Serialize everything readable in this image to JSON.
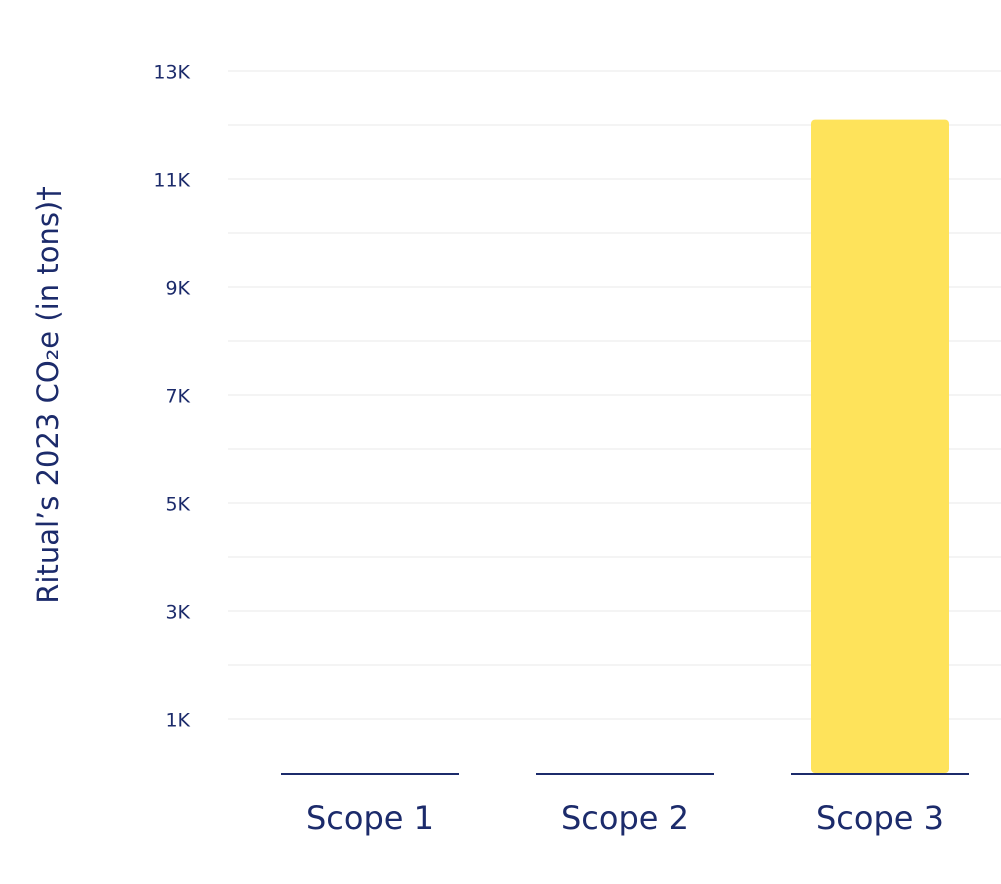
{
  "chart_data": {
    "type": "bar",
    "y_label": "Ritual’s 2023 CO₂e  (in tons)†",
    "categories": [
      "Scope 1",
      "Scope 2",
      "Scope 3"
    ],
    "values": [
      0,
      0,
      12100
    ],
    "color": "#fee35b",
    "baseline_color": "#1c2b6b",
    "ylim": [
      0,
      13000
    ],
    "yticks": [
      {
        "value": 1000,
        "label": "1K"
      },
      {
        "value": 3000,
        "label": "3K"
      },
      {
        "value": 5000,
        "label": "5K"
      },
      {
        "value": 7000,
        "label": "7K"
      },
      {
        "value": 9000,
        "label": "9K"
      },
      {
        "value": 11000,
        "label": "11K"
      },
      {
        "value": 13000,
        "label": "13K"
      }
    ],
    "minor_yticks": [
      2000,
      4000,
      6000,
      8000,
      10000,
      12000
    ],
    "grid": true
  }
}
